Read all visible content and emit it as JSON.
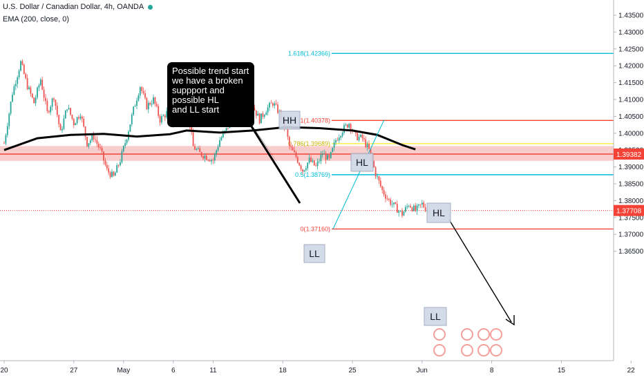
{
  "header": {
    "title": "U.S. Dollar / Canadian Dollar, 4h, OANDA",
    "indicator": "EMA (200, close, 0)"
  },
  "annotation": {
    "text": "Possible trend start\nwe have a broken\nsuppport and\npossible HL\nand LL start"
  },
  "pattern_labels": [
    "HH",
    "HL",
    "HL",
    "LL",
    "LL"
  ],
  "colors": {
    "up": "#26a69a",
    "down": "#ef5350",
    "ema": "#000000",
    "fib_red": "#f44336",
    "fib_cyan": "#00bcd4",
    "fib_yellow": "#ffeb3b",
    "zone": "#f8bcbc",
    "last_price": "#f44336"
  },
  "chart_data": {
    "type": "candlestick",
    "symbol": "USDCAD",
    "timeframe": "4h",
    "ylim": [
      1.361,
      1.4365
    ],
    "y_ticks": [
      "1.43500",
      "1.43000",
      "1.42500",
      "1.42000",
      "1.41500",
      "1.41000",
      "1.40500",
      "1.40000",
      "1.39500",
      "1.39000",
      "1.38500",
      "1.38000",
      "1.37500",
      "1.37000",
      "1.36500"
    ],
    "y_tick_values": [
      1.435,
      1.43,
      1.425,
      1.42,
      1.415,
      1.41,
      1.405,
      1.4,
      1.395,
      1.39,
      1.385,
      1.38,
      1.375,
      1.37,
      1.365
    ],
    "x_ticks": [
      "20",
      "27",
      "May",
      "6",
      "11",
      "18",
      "25",
      "Jun",
      "8",
      "15",
      "22"
    ],
    "x_tick_index": [
      0,
      42,
      72,
      102,
      126,
      168,
      210,
      252,
      294,
      336,
      378
    ],
    "price_path": [
      [
        0,
        1.397
      ],
      [
        5,
        1.412
      ],
      [
        10,
        1.421
      ],
      [
        14,
        1.414
      ],
      [
        18,
        1.409
      ],
      [
        22,
        1.416
      ],
      [
        26,
        1.406
      ],
      [
        30,
        1.411
      ],
      [
        34,
        1.4
      ],
      [
        38,
        1.408
      ],
      [
        42,
        1.403
      ],
      [
        46,
        1.406
      ],
      [
        50,
        1.397
      ],
      [
        54,
        1.399
      ],
      [
        58,
        1.395
      ],
      [
        62,
        1.389
      ],
      [
        66,
        1.387
      ],
      [
        70,
        1.392
      ],
      [
        74,
        1.399
      ],
      [
        78,
        1.407
      ],
      [
        82,
        1.414
      ],
      [
        86,
        1.408
      ],
      [
        90,
        1.41
      ],
      [
        94,
        1.404
      ],
      [
        98,
        1.406
      ],
      [
        102,
        1.403
      ],
      [
        106,
        1.411
      ],
      [
        110,
        1.409
      ],
      [
        114,
        1.396
      ],
      [
        118,
        1.394
      ],
      [
        122,
        1.393
      ],
      [
        126,
        1.392
      ],
      [
        130,
        1.398
      ],
      [
        134,
        1.401
      ],
      [
        138,
        1.405
      ],
      [
        142,
        1.403
      ],
      [
        146,
        1.406
      ],
      [
        150,
        1.408
      ],
      [
        154,
        1.404
      ],
      [
        158,
        1.407
      ],
      [
        162,
        1.409
      ],
      [
        166,
        1.406
      ],
      [
        170,
        1.401
      ],
      [
        172,
        1.396
      ],
      [
        176,
        1.393
      ],
      [
        180,
        1.389
      ],
      [
        184,
        1.392
      ],
      [
        188,
        1.39
      ],
      [
        192,
        1.394
      ],
      [
        196,
        1.392
      ],
      [
        200,
        1.398
      ],
      [
        204,
        1.401
      ],
      [
        208,
        1.403
      ],
      [
        212,
        1.399
      ],
      [
        216,
        1.3985
      ],
      [
        220,
        1.395
      ],
      [
        224,
        1.388
      ],
      [
        228,
        1.383
      ],
      [
        232,
        1.38
      ],
      [
        236,
        1.378
      ],
      [
        240,
        1.376
      ],
      [
        244,
        1.379
      ],
      [
        248,
        1.377
      ],
      [
        252,
        1.379
      ],
      [
        255,
        1.3771
      ]
    ],
    "ema_200": [
      [
        0,
        1.395
      ],
      [
        20,
        1.3985
      ],
      [
        40,
        1.3995
      ],
      [
        60,
        1.3998
      ],
      [
        80,
        1.399
      ],
      [
        100,
        1.3997
      ],
      [
        110,
        1.4008
      ],
      [
        130,
        1.4002
      ],
      [
        150,
        1.4008
      ],
      [
        170,
        1.4018
      ],
      [
        190,
        1.4015
      ],
      [
        210,
        1.4008
      ],
      [
        225,
        1.3995
      ],
      [
        240,
        1.3965
      ],
      [
        248,
        1.3952
      ]
    ],
    "horizontal_levels": [
      {
        "label": "1.618(1.42366)",
        "value": 1.42366,
        "color": "fib_cyan"
      },
      {
        "label": "1(1.40378)",
        "value": 1.40378,
        "color": "fib_red"
      },
      {
        "label": "0.786(1.39689)",
        "value": 1.39689,
        "color": "fib_yellow"
      },
      {
        "label": "0.5(1.38769)",
        "value": 1.38769,
        "color": "fib_cyan"
      },
      {
        "label": "0(1.37160)",
        "value": 1.3716,
        "color": "fib_red"
      }
    ],
    "support_zone": [
      1.3918,
      1.3962
    ],
    "support_line": 1.39382,
    "price_badges": [
      {
        "label": "1.39382",
        "value": 1.39382
      },
      {
        "label": "1.37708",
        "value": 1.37708
      }
    ],
    "last_price": 1.37708
  }
}
